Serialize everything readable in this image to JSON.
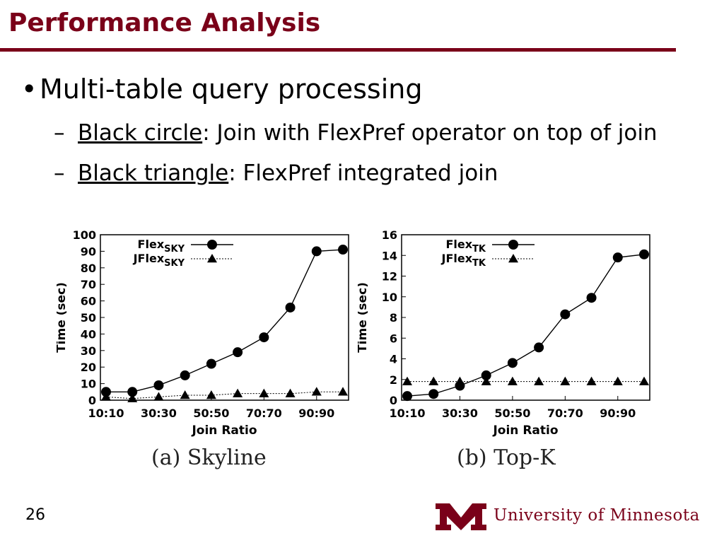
{
  "slide": {
    "title": "Performance Analysis",
    "bullet": "Multi-table query processing",
    "sub1_label": "Black circle",
    "sub1_text": ": Join with FlexPref operator on top of join",
    "sub2_label": "Black triangle",
    "sub2_text": ": FlexPref integrated join",
    "page_number": "26",
    "logo_text": "University of Minnesota",
    "accent_color": "#7a0019"
  },
  "chart_data": [
    {
      "type": "line",
      "caption": "(a) Skyline",
      "xlabel": "Join Ratio",
      "ylabel": "Time (sec)",
      "x_ticks": [
        "10:10",
        "30:30",
        "50:50",
        "70:70",
        "90:90"
      ],
      "x": [
        1,
        2,
        3,
        4,
        5,
        6,
        7,
        8,
        9,
        10
      ],
      "ylim": [
        0,
        100
      ],
      "y_ticks": [
        0,
        10,
        20,
        30,
        40,
        50,
        60,
        70,
        80,
        90,
        100
      ],
      "legend_position": "top-left",
      "series": [
        {
          "name": "Flex",
          "sub": "SKY",
          "marker": "circle",
          "style": "solid",
          "values": [
            5,
            5,
            9,
            15,
            22,
            29,
            38,
            56,
            90,
            91
          ]
        },
        {
          "name": "JFlex",
          "sub": "SKY",
          "marker": "triangle",
          "style": "dotted",
          "values": [
            2,
            1,
            2,
            3,
            3,
            4,
            4,
            4,
            5,
            5
          ]
        }
      ]
    },
    {
      "type": "line",
      "caption": "(b) Top-K",
      "xlabel": "Join Ratio",
      "ylabel": "Time (sec)",
      "x_ticks": [
        "10:10",
        "30:30",
        "50:50",
        "70:70",
        "90:90"
      ],
      "x": [
        1,
        2,
        3,
        4,
        5,
        6,
        7,
        8,
        9,
        10
      ],
      "ylim": [
        0,
        16
      ],
      "y_ticks": [
        0,
        2,
        4,
        6,
        8,
        10,
        12,
        14,
        16
      ],
      "legend_position": "top-left",
      "series": [
        {
          "name": "Flex",
          "sub": "TK",
          "marker": "circle",
          "style": "solid",
          "values": [
            0.4,
            0.6,
            1.4,
            2.4,
            3.6,
            5.1,
            8.3,
            9.9,
            13.8,
            14.1
          ]
        },
        {
          "name": "JFlex",
          "sub": "TK",
          "marker": "triangle",
          "style": "dotted",
          "values": [
            1.8,
            1.8,
            1.8,
            1.8,
            1.8,
            1.8,
            1.8,
            1.8,
            1.8,
            1.8
          ]
        }
      ]
    }
  ]
}
